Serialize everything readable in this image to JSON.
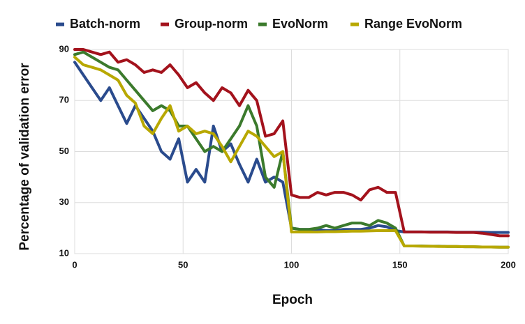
{
  "chart_data": {
    "type": "line",
    "x_label": "Epoch",
    "y_label": "Percentage of validation error",
    "x": [
      0,
      4,
      8,
      12,
      16,
      20,
      24,
      28,
      32,
      36,
      40,
      44,
      48,
      52,
      56,
      60,
      64,
      68,
      72,
      76,
      80,
      84,
      88,
      92,
      96,
      100,
      104,
      108,
      112,
      116,
      120,
      124,
      128,
      132,
      136,
      140,
      144,
      148,
      152,
      156,
      160,
      164,
      168,
      172,
      176,
      180,
      184,
      188,
      192,
      196,
      200
    ],
    "series": [
      {
        "name": "Batch-norm",
        "color": "#2a4b8d",
        "values": [
          85,
          80,
          75,
          70,
          75,
          68,
          61,
          68,
          63,
          58,
          50,
          47,
          55,
          38,
          43,
          38,
          60,
          50,
          53,
          45,
          38,
          47,
          38,
          40,
          38,
          20,
          19.5,
          19.5,
          19.5,
          19,
          19,
          19.5,
          19.5,
          19.5,
          20,
          21,
          20.5,
          19,
          18.5,
          18.5,
          18.5,
          18.5,
          18.5,
          18.5,
          18.4,
          18.4,
          18.4,
          18.4,
          18.3,
          18.3,
          18.3
        ]
      },
      {
        "name": "Group-norm",
        "color": "#a3121c",
        "values": [
          90,
          90,
          89,
          88,
          89,
          85,
          86,
          84,
          81,
          82,
          81,
          84,
          80,
          75,
          77,
          73,
          70,
          75,
          73,
          68,
          74,
          70,
          56,
          57,
          62,
          33,
          32,
          32,
          34,
          33,
          34,
          34,
          33,
          31,
          35,
          36,
          34,
          34,
          18.5,
          18.5,
          18.5,
          18.4,
          18.4,
          18.4,
          18.3,
          18.3,
          18.3,
          18,
          17.5,
          17,
          17
        ]
      },
      {
        "name": "EvoNorm",
        "color": "#3b7a2c",
        "values": [
          88,
          89,
          87,
          85,
          83,
          82,
          78,
          74,
          70,
          66,
          68,
          66,
          60,
          60,
          55,
          50,
          52,
          50,
          55,
          60,
          68,
          60,
          40,
          36,
          50,
          20,
          19.5,
          19.5,
          20,
          21,
          20,
          21,
          22,
          22,
          21,
          23,
          22,
          20,
          13,
          13,
          13,
          12.9,
          12.9,
          12.8,
          12.8,
          12.7,
          12.7,
          12.6,
          12.6,
          12.5,
          12.5
        ]
      },
      {
        "name": "Range EvoNorm",
        "color": "#b8a800",
        "values": [
          87,
          84,
          83,
          82,
          80,
          78,
          72,
          69,
          60,
          57,
          63,
          68,
          58,
          60,
          57,
          58,
          57,
          52,
          46,
          52,
          58,
          56,
          52,
          48,
          50,
          18.5,
          18.5,
          18.5,
          18.5,
          18.6,
          18.6,
          18.7,
          18.8,
          18.8,
          18.9,
          19,
          19,
          19,
          13,
          13,
          12.9,
          12.9,
          12.8,
          12.8,
          12.8,
          12.7,
          12.7,
          12.6,
          12.6,
          12.5,
          12.5
        ]
      }
    ],
    "xlim": [
      0,
      200
    ],
    "xticks": [
      0,
      50,
      100,
      150,
      200
    ],
    "ylim": [
      10,
      90
    ],
    "yticks": [
      10,
      30,
      50,
      70,
      90
    ],
    "grid": true
  }
}
